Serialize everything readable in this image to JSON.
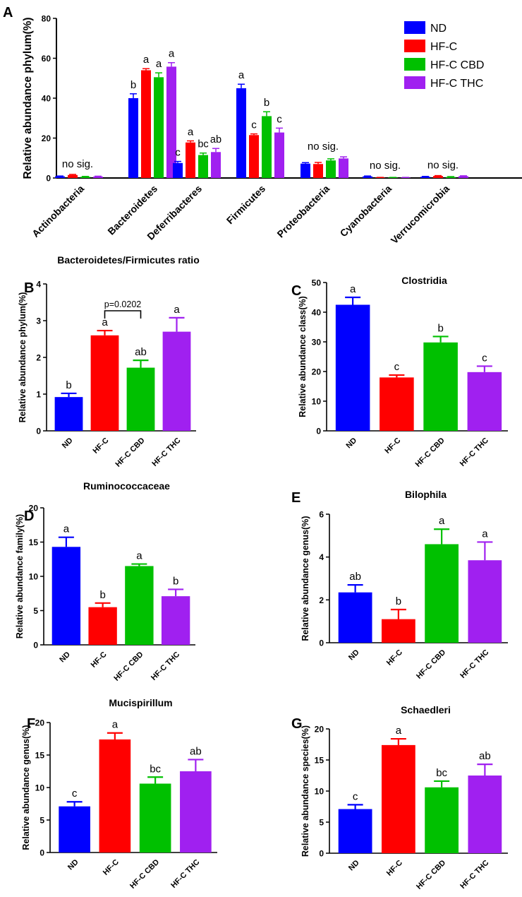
{
  "chart_data": [
    {
      "panel": "A",
      "type": "bar",
      "title": "",
      "ylabel": "Relative abundance phylum(%)",
      "xlabel": "",
      "ylim": [
        0,
        80
      ],
      "yticks": [
        0,
        20,
        40,
        60,
        80
      ],
      "categories": [
        "Actinobacteria",
        "Bacteroidetes",
        "Deferribacteres",
        "Firmicutes",
        "Proteobacteria",
        "Cyanobacteria",
        "Verrucomicrobia"
      ],
      "series": [
        {
          "name": "ND",
          "color": "#0000FF",
          "values": [
            0.8,
            40.0,
            7.5,
            45.0,
            7.2,
            0.8,
            0.6
          ],
          "errors": [
            0.2,
            2.2,
            0.8,
            2.0,
            0.5,
            0.2,
            0.2
          ]
        },
        {
          "name": "HF-C",
          "color": "#FF0000",
          "values": [
            1.5,
            54.0,
            17.8,
            21.5,
            7.0,
            0.2,
            1.0
          ],
          "errors": [
            0.3,
            0.8,
            0.8,
            0.6,
            0.8,
            0.1,
            0.2
          ]
        },
        {
          "name": "HF-C CBD",
          "color": "#00C000",
          "values": [
            0.6,
            50.5,
            11.5,
            31.0,
            8.8,
            0.2,
            0.5
          ],
          "errors": [
            0.2,
            2.2,
            1.0,
            2.2,
            0.8,
            0.1,
            0.2
          ]
        },
        {
          "name": "HF-C THC",
          "color": "#A020F0",
          "values": [
            0.7,
            55.8,
            13.0,
            22.8,
            9.8,
            0.2,
            0.9
          ],
          "errors": [
            0.2,
            2.0,
            1.8,
            2.2,
            0.8,
            0.1,
            0.2
          ]
        }
      ],
      "annotations": [
        {
          "category": "Actinobacteria",
          "text": "no sig."
        },
        {
          "category": "Bacteroidetes",
          "letters": [
            "b",
            "a",
            "a",
            "a"
          ]
        },
        {
          "category": "Deferribacteres",
          "letters": [
            "c",
            "a",
            "bc",
            "ab"
          ]
        },
        {
          "category": "Firmicutes",
          "letters": [
            "a",
            "c",
            "b",
            "c"
          ]
        },
        {
          "category": "Proteobacteria",
          "text": "no sig."
        },
        {
          "category": "Cyanobacteria",
          "text": "no sig."
        },
        {
          "category": "Verrucomicrobia",
          "text": "no sig."
        }
      ],
      "legend": {
        "placement": "top-right",
        "entries": [
          "ND",
          "HF-C",
          "HF-C CBD",
          "HF-C THC"
        ]
      }
    },
    {
      "panel": "B",
      "type": "bar",
      "title": "Bacteroidetes/Firmicutes ratio",
      "ylabel": "Relative abundance phylum(%)",
      "ylim": [
        0,
        4
      ],
      "yticks": [
        0,
        1,
        2,
        3,
        4
      ],
      "categories": [
        "ND",
        "HF-C",
        "HF-C CBD",
        "HF-C THC"
      ],
      "colors": [
        "#0000FF",
        "#FF0000",
        "#00C000",
        "#A020F0"
      ],
      "values": [
        0.92,
        2.6,
        1.72,
        2.7
      ],
      "errors": [
        0.1,
        0.13,
        0.2,
        0.38
      ],
      "letters": [
        "b",
        "a",
        "ab",
        "a"
      ],
      "comparison": {
        "from": "HF-C",
        "to": "HF-C CBD",
        "label": "p=0.0202"
      }
    },
    {
      "panel": "C",
      "type": "bar",
      "title": "Clostridia",
      "ylabel": "Relative abundance class(%)",
      "ylim": [
        0,
        50
      ],
      "yticks": [
        0,
        10,
        20,
        30,
        40,
        50
      ],
      "categories": [
        "ND",
        "HF-C",
        "HF-C CBD",
        "HF-C THC"
      ],
      "colors": [
        "#0000FF",
        "#FF0000",
        "#00C000",
        "#A020F0"
      ],
      "values": [
        42.5,
        18.0,
        29.8,
        19.8
      ],
      "errors": [
        2.5,
        0.8,
        2.0,
        2.0
      ],
      "letters": [
        "a",
        "c",
        "b",
        "c"
      ]
    },
    {
      "panel": "D",
      "type": "bar",
      "title": "Ruminococcaceae",
      "ylabel": "Relative abundance family(%)",
      "ylim": [
        0,
        20
      ],
      "yticks": [
        0,
        5,
        10,
        15,
        20
      ],
      "categories": [
        "ND",
        "HF-C",
        "HF-C CBD",
        "HF-C THC"
      ],
      "colors": [
        "#0000FF",
        "#FF0000",
        "#00C000",
        "#A020F0"
      ],
      "values": [
        14.3,
        5.5,
        11.5,
        7.1
      ],
      "errors": [
        1.4,
        0.6,
        0.3,
        1.0
      ],
      "letters": [
        "a",
        "b",
        "a",
        "b"
      ]
    },
    {
      "panel": "E",
      "type": "bar",
      "title": "Bilophila",
      "ylabel": "Relative abundance genus(%)",
      "ylim": [
        0,
        6
      ],
      "yticks": [
        0,
        2,
        4,
        6
      ],
      "categories": [
        "ND",
        "HF-C",
        "HF-C CBD",
        "HF-C THC"
      ],
      "colors": [
        "#0000FF",
        "#FF0000",
        "#00C000",
        "#A020F0"
      ],
      "values": [
        2.35,
        1.1,
        4.6,
        3.85
      ],
      "errors": [
        0.35,
        0.45,
        0.7,
        0.85
      ],
      "letters": [
        "ab",
        "b",
        "a",
        "a"
      ]
    },
    {
      "panel": "F",
      "type": "bar",
      "title": "Mucispirillum",
      "ylabel": "Relative abundance genus(%)",
      "ylim": [
        0,
        20
      ],
      "yticks": [
        0,
        5,
        10,
        15,
        20
      ],
      "categories": [
        "ND",
        "HF-C",
        "HF-C CBD",
        "HF-C THC"
      ],
      "colors": [
        "#0000FF",
        "#FF0000",
        "#00C000",
        "#A020F0"
      ],
      "values": [
        7.1,
        17.4,
        10.6,
        12.5
      ],
      "errors": [
        0.7,
        1.0,
        1.0,
        1.8
      ],
      "letters": [
        "c",
        "a",
        "bc",
        "ab"
      ]
    },
    {
      "panel": "G",
      "type": "bar",
      "title": "Schaedleri",
      "ylabel": "Relative abundance species(%)",
      "ylim": [
        0,
        20
      ],
      "yticks": [
        0,
        5,
        10,
        15,
        20
      ],
      "categories": [
        "ND",
        "HF-C",
        "HF-C CBD",
        "HF-C THC"
      ],
      "colors": [
        "#0000FF",
        "#FF0000",
        "#00C000",
        "#A020F0"
      ],
      "values": [
        7.1,
        17.4,
        10.6,
        12.5
      ],
      "errors": [
        0.7,
        1.0,
        1.0,
        1.8
      ],
      "letters": [
        "c",
        "a",
        "bc",
        "ab"
      ]
    }
  ]
}
